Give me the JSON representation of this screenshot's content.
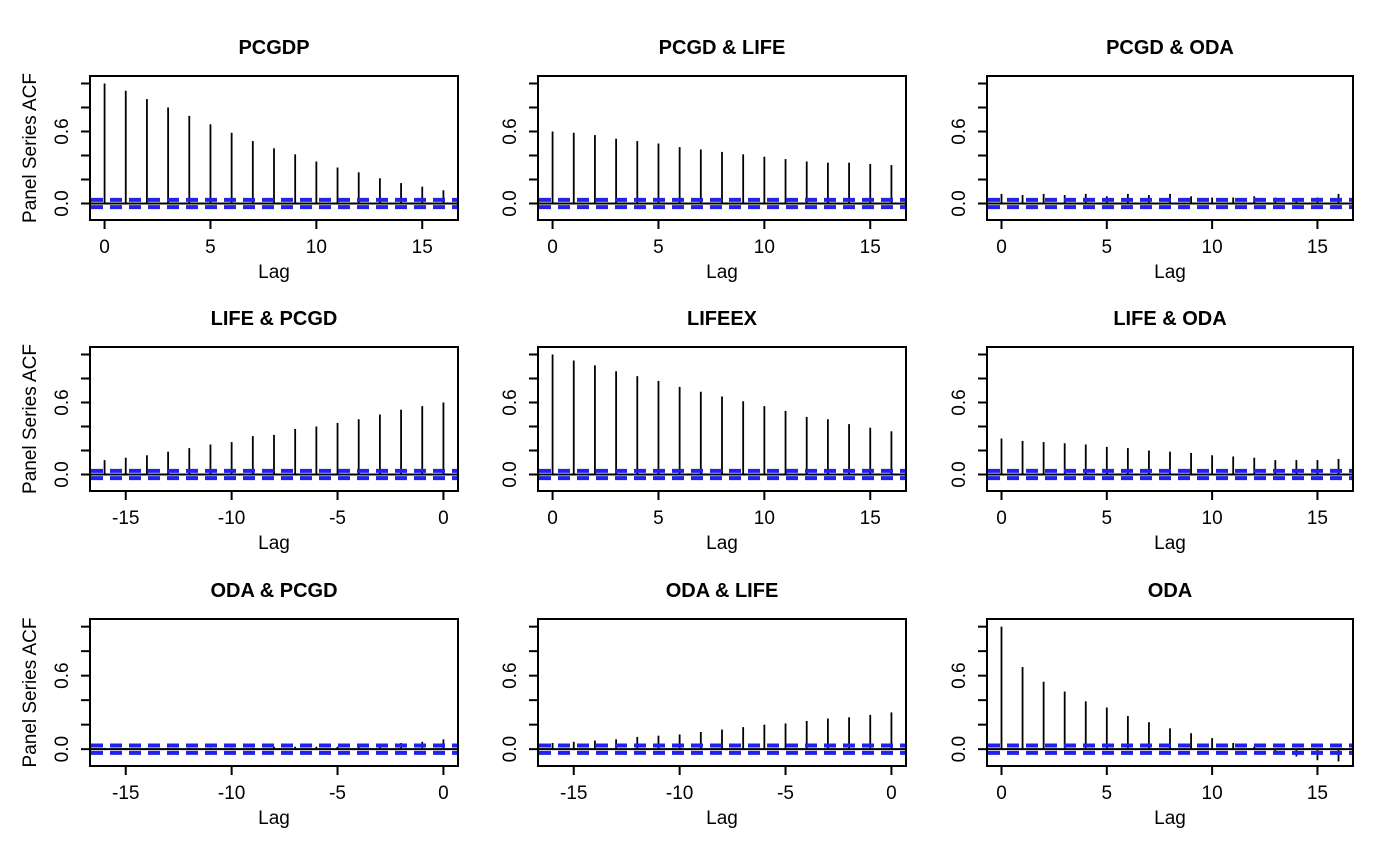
{
  "figure": {
    "background": "#ffffff",
    "ylabel": "Panel Series ACF",
    "xlabel": "Lag",
    "colors": {
      "spike": "#000000",
      "box": "#000000",
      "zero_line": "#000000",
      "ci_line": "#2222ee",
      "text": "#000000"
    },
    "ci_bound": 0.03,
    "y_ticks": [
      0.0,
      0.2,
      0.4,
      0.6,
      0.8,
      1.0
    ],
    "y_tick_labels": [
      {
        "value": 0.0,
        "label": "0.0"
      },
      {
        "value": 0.6,
        "label": "0.6"
      }
    ],
    "ylim_drawn": [
      -0.1375,
      1.0625
    ],
    "grid": "off",
    "legend": "none"
  },
  "chart_data": [
    {
      "type": "bar",
      "subtype": "acf-spikes",
      "title": "PCGDP",
      "row": 0,
      "col": 0,
      "lags": {
        "from": 0,
        "to": 16
      },
      "x_ticks": [
        0,
        5,
        10,
        15
      ],
      "values": [
        1.0,
        0.94,
        0.87,
        0.8,
        0.73,
        0.66,
        0.59,
        0.52,
        0.46,
        0.41,
        0.35,
        0.3,
        0.26,
        0.21,
        0.17,
        0.14,
        0.11
      ]
    },
    {
      "type": "bar",
      "subtype": "acf-spikes",
      "title": "PCGD & LIFE",
      "row": 0,
      "col": 1,
      "lags": {
        "from": 0,
        "to": 16
      },
      "x_ticks": [
        0,
        5,
        10,
        15
      ],
      "values": [
        0.6,
        0.59,
        0.57,
        0.54,
        0.52,
        0.5,
        0.47,
        0.45,
        0.43,
        0.41,
        0.39,
        0.37,
        0.35,
        0.34,
        0.34,
        0.33,
        0.32
      ]
    },
    {
      "type": "bar",
      "subtype": "acf-spikes",
      "title": "PCGD & ODA",
      "row": 0,
      "col": 2,
      "lags": {
        "from": 0,
        "to": 16
      },
      "x_ticks": [
        0,
        5,
        10,
        15
      ],
      "values": [
        0.08,
        0.07,
        0.08,
        0.07,
        0.08,
        0.06,
        0.08,
        0.07,
        0.08,
        0.06,
        0.05,
        0.05,
        0.06,
        0.05,
        0.04,
        0.05,
        0.08
      ]
    },
    {
      "type": "bar",
      "subtype": "acf-spikes",
      "title": "LIFE & PCGD",
      "row": 1,
      "col": 0,
      "lags": {
        "from": -16,
        "to": 0
      },
      "x_ticks": [
        -15,
        -10,
        -5,
        0
      ],
      "values": [
        0.12,
        0.14,
        0.16,
        0.19,
        0.22,
        0.25,
        0.27,
        0.32,
        0.33,
        0.38,
        0.4,
        0.43,
        0.46,
        0.5,
        0.54,
        0.57,
        0.6
      ]
    },
    {
      "type": "bar",
      "subtype": "acf-spikes",
      "title": "LIFEEX",
      "row": 1,
      "col": 1,
      "lags": {
        "from": 0,
        "to": 16
      },
      "x_ticks": [
        0,
        5,
        10,
        15
      ],
      "values": [
        1.0,
        0.95,
        0.91,
        0.86,
        0.82,
        0.78,
        0.73,
        0.69,
        0.65,
        0.61,
        0.57,
        0.53,
        0.48,
        0.46,
        0.42,
        0.39,
        0.36
      ]
    },
    {
      "type": "bar",
      "subtype": "acf-spikes",
      "title": "LIFE & ODA",
      "row": 1,
      "col": 2,
      "lags": {
        "from": 0,
        "to": 16
      },
      "x_ticks": [
        0,
        5,
        10,
        15
      ],
      "values": [
        0.3,
        0.28,
        0.27,
        0.26,
        0.25,
        0.23,
        0.22,
        0.2,
        0.19,
        0.18,
        0.16,
        0.15,
        0.14,
        0.12,
        0.12,
        0.12,
        0.13
      ]
    },
    {
      "type": "bar",
      "subtype": "acf-spikes",
      "title": "ODA & PCGD",
      "row": 2,
      "col": 0,
      "lags": {
        "from": -16,
        "to": 0
      },
      "x_ticks": [
        -15,
        -10,
        -5,
        0
      ],
      "values": [
        0.01,
        0.01,
        0.01,
        0.01,
        0.01,
        0.01,
        0.01,
        0.01,
        0.02,
        0.02,
        0.02,
        0.02,
        0.03,
        0.04,
        0.05,
        0.06,
        0.08
      ]
    },
    {
      "type": "bar",
      "subtype": "acf-spikes",
      "title": "ODA & LIFE",
      "row": 2,
      "col": 1,
      "lags": {
        "from": -16,
        "to": 0
      },
      "x_ticks": [
        -15,
        -10,
        -5,
        0
      ],
      "values": [
        0.05,
        0.06,
        0.07,
        0.08,
        0.1,
        0.11,
        0.12,
        0.14,
        0.16,
        0.18,
        0.2,
        0.21,
        0.23,
        0.25,
        0.26,
        0.28,
        0.3
      ]
    },
    {
      "type": "bar",
      "subtype": "acf-spikes",
      "title": "ODA",
      "row": 2,
      "col": 2,
      "lags": {
        "from": 0,
        "to": 16
      },
      "x_ticks": [
        0,
        5,
        10,
        15
      ],
      "values": [
        1.0,
        0.67,
        0.55,
        0.47,
        0.39,
        0.34,
        0.27,
        0.22,
        0.17,
        0.13,
        0.09,
        0.05,
        0.02,
        -0.02,
        -0.06,
        -0.09,
        -0.1
      ]
    }
  ]
}
